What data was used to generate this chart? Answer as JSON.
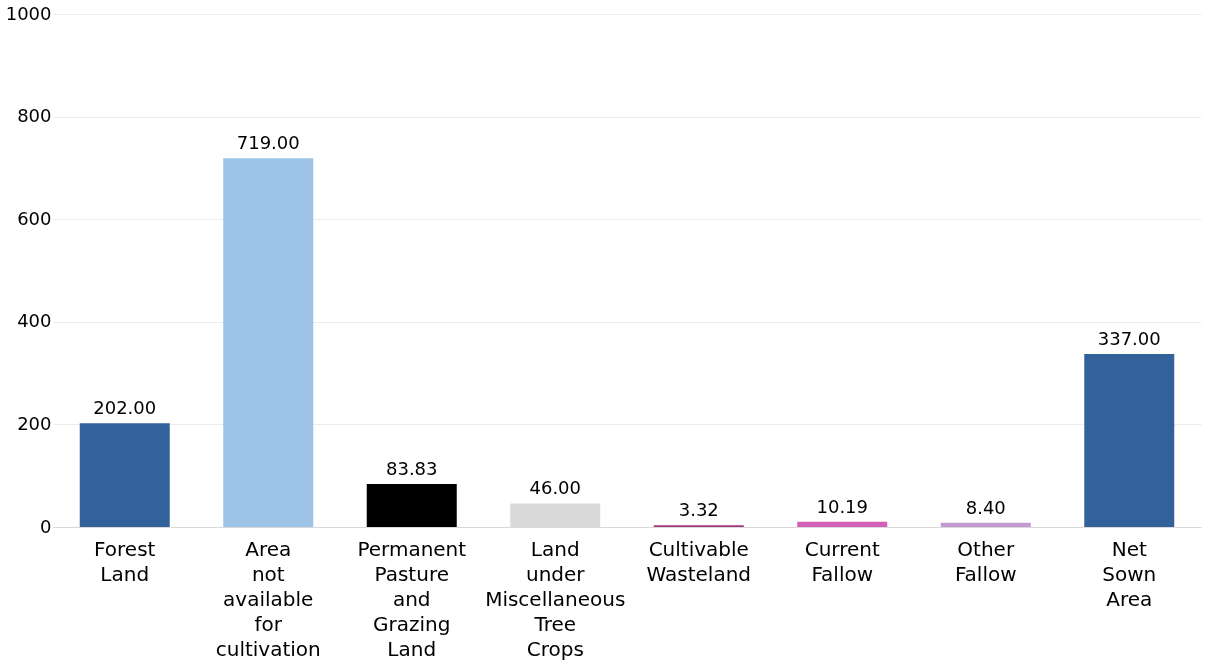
{
  "chart_data": {
    "type": "bar",
    "categories": [
      "Forest Land",
      "Area not available for cultivation",
      "Permanent Pasture and Grazing Land",
      "Land under Miscellaneous Tree Crops",
      "Cultivable Wasteland",
      "Current Fallow",
      "Other Fallow",
      "Net Sown Area"
    ],
    "values": [
      202.0,
      719.0,
      83.83,
      46.0,
      3.32,
      10.19,
      8.4,
      337.0
    ],
    "colors": [
      "#336199",
      "#9dc3e6",
      "#000000",
      "#d9d9d9",
      "#9e3a7a",
      "#d35fb7",
      "#c39bd3",
      "#336199"
    ],
    "value_labels": [
      "202.00",
      "719.00",
      "83.83",
      "46.00",
      "3.32",
      "10.19",
      "8.40",
      "337.00"
    ],
    "ylim": [
      0,
      1000
    ],
    "yticks": [
      0,
      200,
      400,
      600,
      800,
      1000
    ],
    "grid": "y"
  }
}
